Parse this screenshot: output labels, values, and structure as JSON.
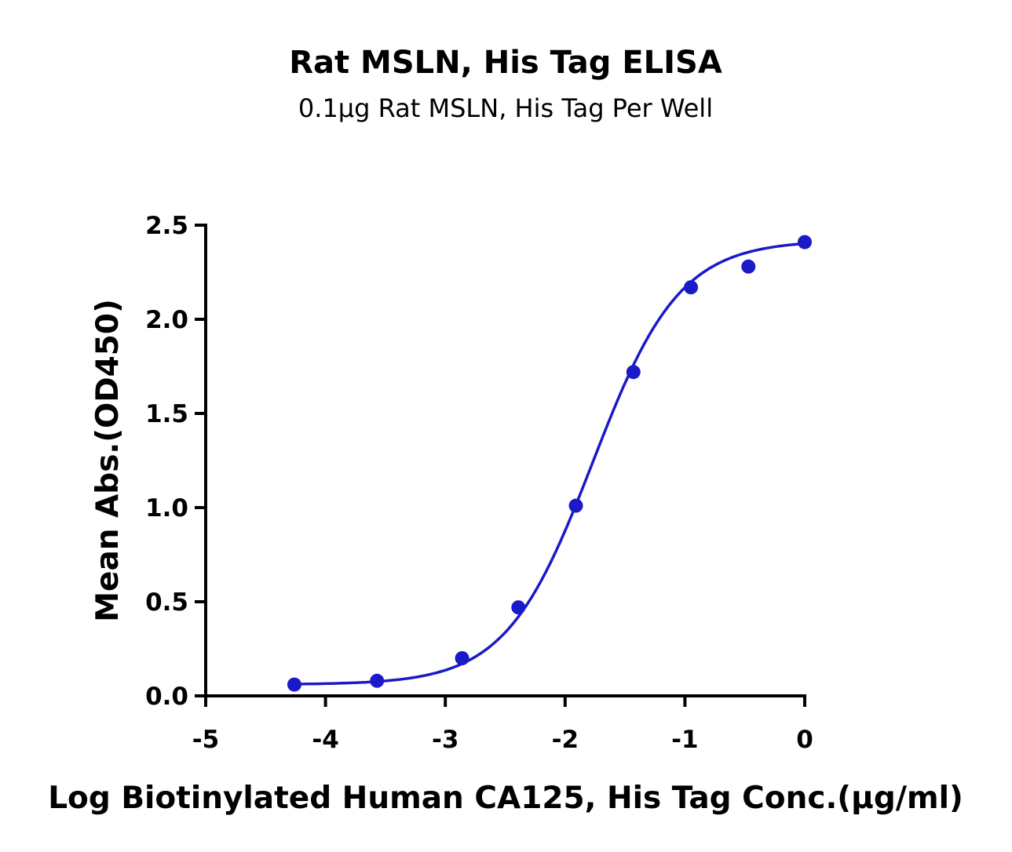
{
  "chart_data": {
    "type": "scatter",
    "title": "Rat MSLN, His Tag ELISA",
    "subtitle": "0.1μg Rat MSLN, His Tag Per Well",
    "xlabel": "Log Biotinylated Human CA125, His Tag Conc.(μg/ml)",
    "ylabel": "Mean Abs.(OD450)",
    "xlim": [
      -5,
      0
    ],
    "ylim": [
      0,
      2.5
    ],
    "xticks": [
      "-5",
      "-4",
      "-3",
      "-2",
      "-1",
      "0"
    ],
    "yticks": [
      "0.0",
      "0.5",
      "1.0",
      "1.5",
      "2.0",
      "2.5"
    ],
    "grid": false,
    "fit_curve": "sigmoidal",
    "color": "#1a1ac8",
    "series": [
      {
        "x": [
          -4.26,
          -3.57,
          -2.86,
          -2.39,
          -1.91,
          -1.43,
          -0.95,
          -0.47,
          0.0
        ],
        "y": [
          0.06,
          0.08,
          0.2,
          0.47,
          1.01,
          1.72,
          2.17,
          2.28,
          2.41
        ]
      }
    ]
  }
}
